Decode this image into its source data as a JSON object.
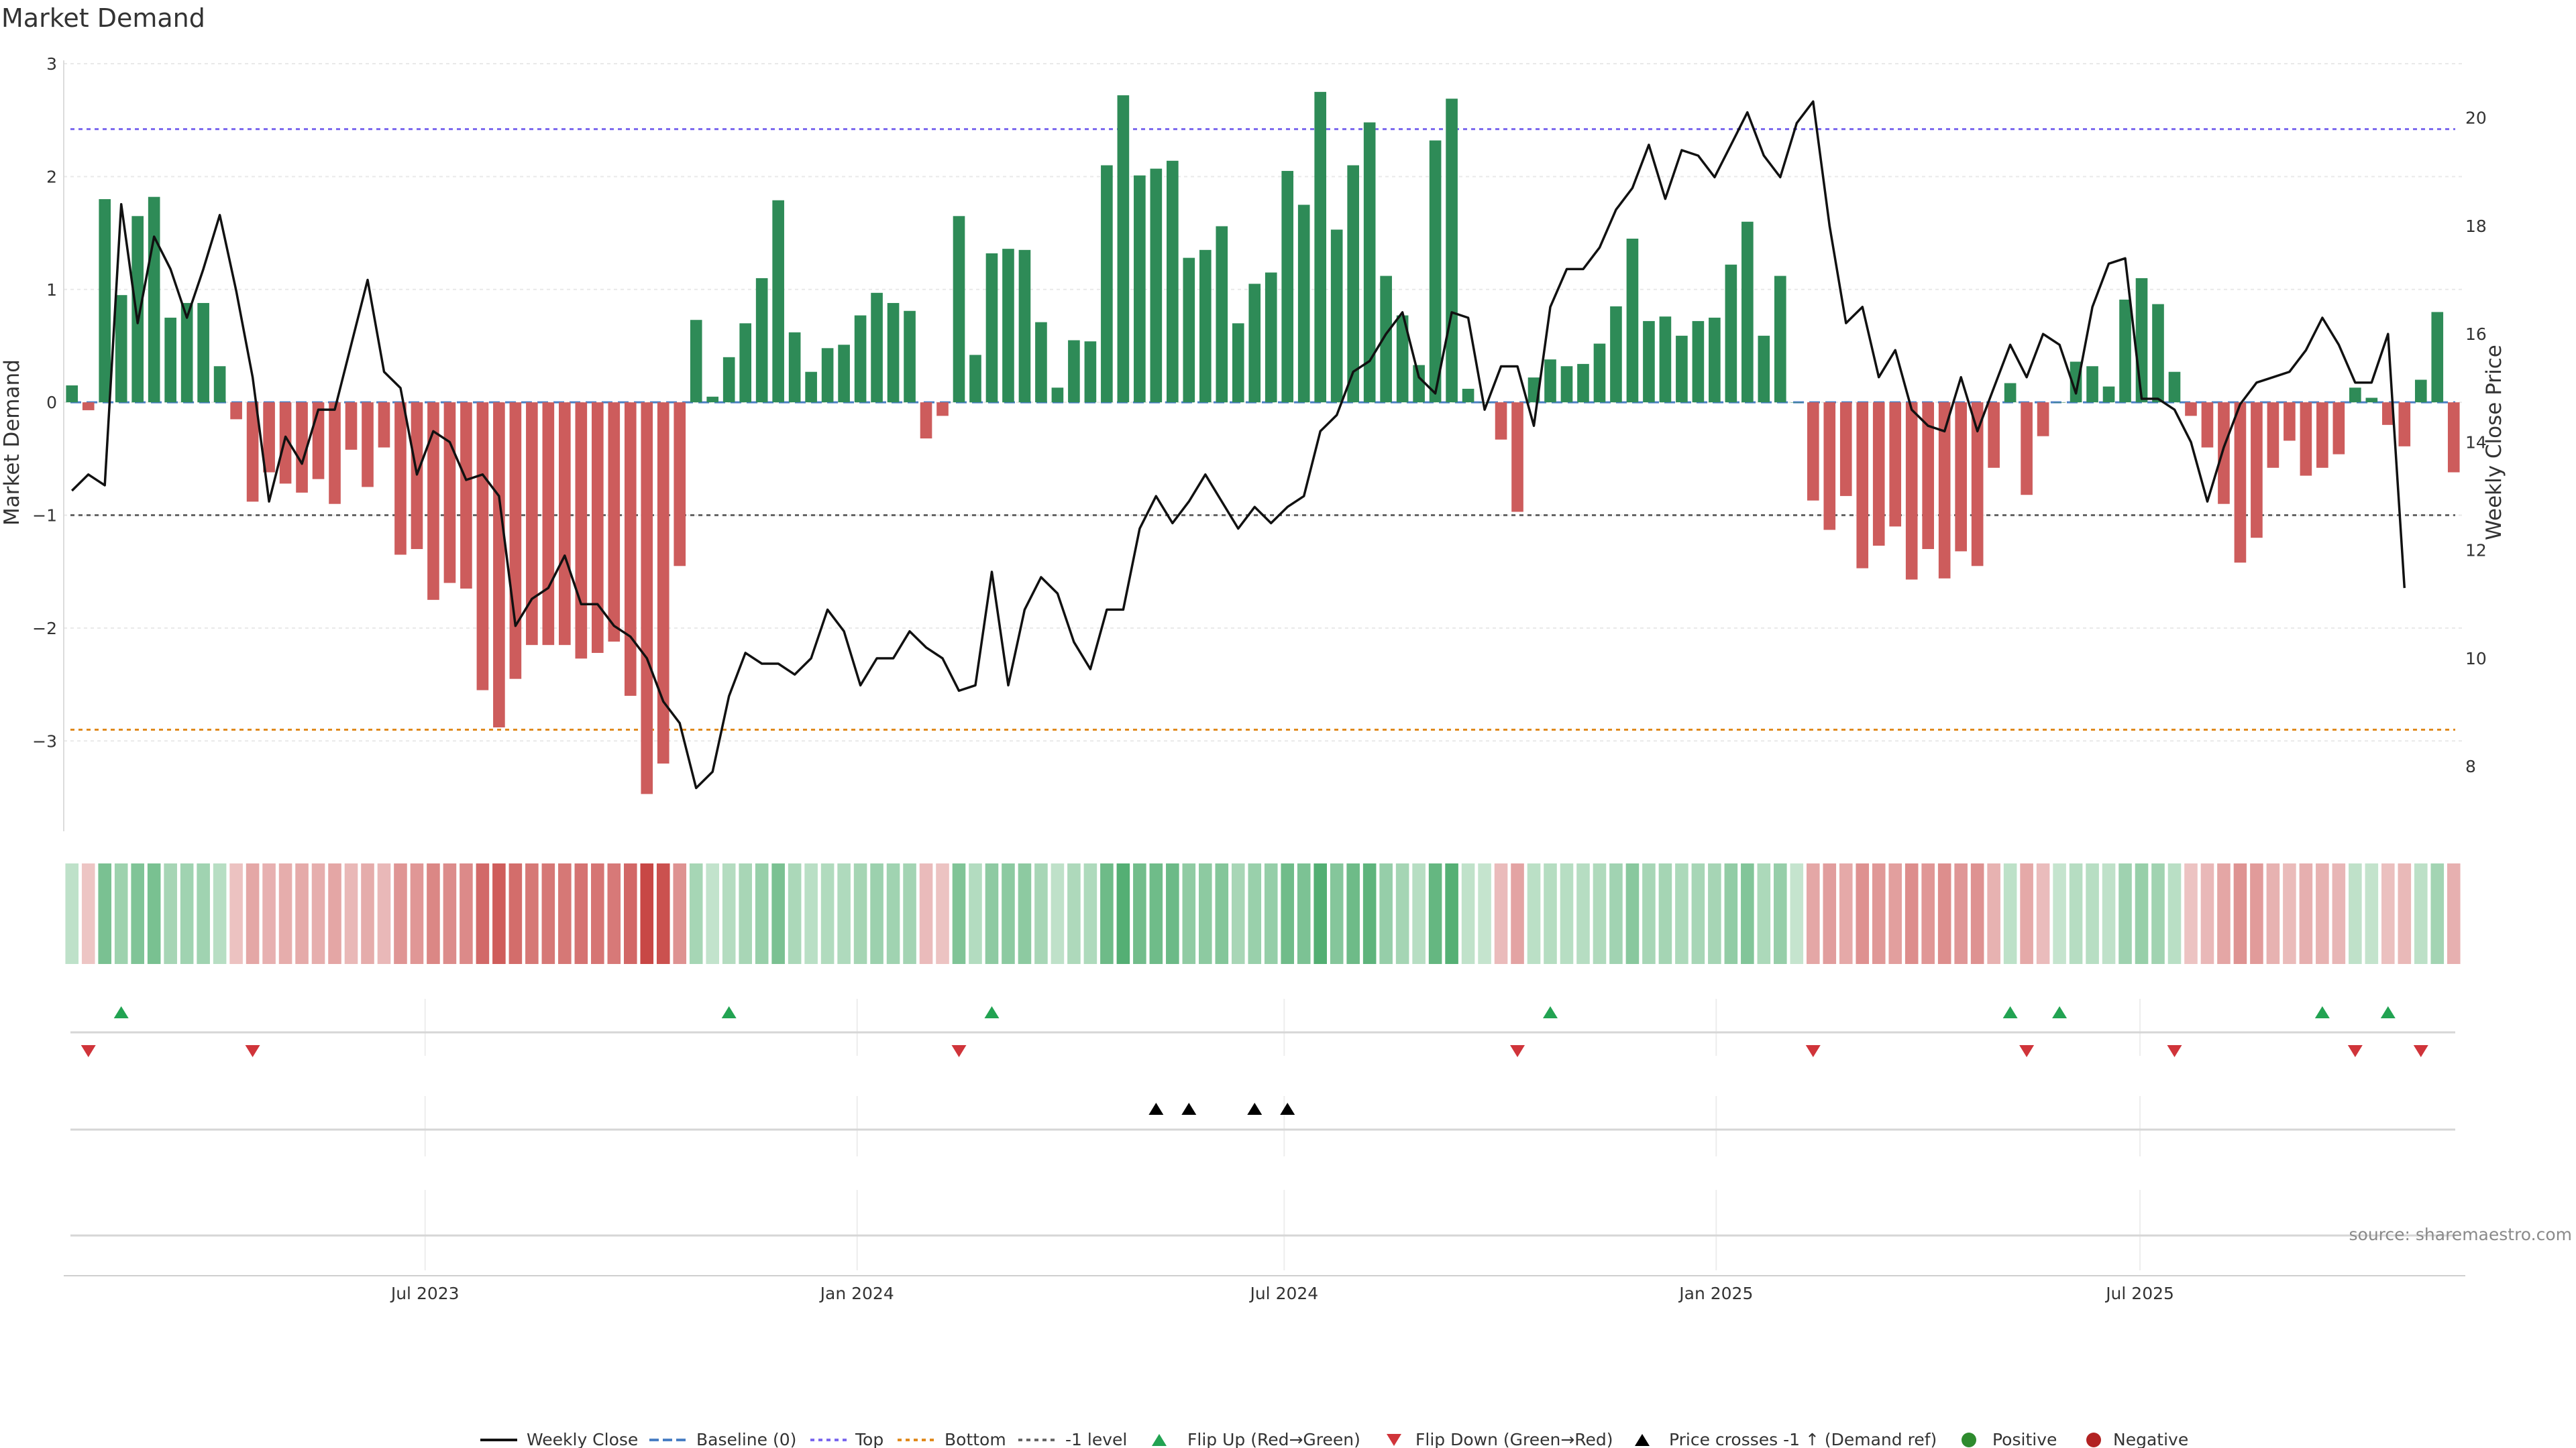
{
  "chart_data": {
    "type": "bar+line",
    "title": "Market Demand",
    "ylabel_left": "Market Demand",
    "ylabel_right": "Weekly Close Price",
    "ylim_left": [
      -3.8,
      3.0
    ],
    "ylim_right": [
      6.8,
      21.0
    ],
    "yticks_left": [
      "3",
      "2",
      "1",
      "0",
      "−1",
      "−2",
      "−3"
    ],
    "yticks_left_values": [
      3,
      2,
      1,
      0,
      -1,
      -2,
      -3
    ],
    "yticks_right": [
      "20",
      "18",
      "16",
      "14",
      "12",
      "10",
      "8"
    ],
    "yticks_right_values": [
      20,
      18,
      16,
      14,
      12,
      10,
      8
    ],
    "x_range_weeks": [
      0,
      144
    ],
    "xticks": [
      "Jul 2023",
      "Jan 2024",
      "Jul 2024",
      "Jan 2025",
      "Jul 2025"
    ],
    "xticks_week": [
      21.5,
      47.8,
      73.8,
      100.1,
      125.9
    ],
    "reference_lines": {
      "top": 2.42,
      "bottom": -2.9,
      "minus_one_level": -1.0,
      "baseline": 0
    },
    "colors": {
      "positive": "#2e8b57",
      "negative": "#cd5c5c",
      "price_line": "#111111",
      "top_line": "#7b68ee",
      "bottom_line": "#e08a1e",
      "minus_one_line": "#666666",
      "baseline": "#4a7fc4",
      "flip_up": "#22a352",
      "flip_down": "#d0343a",
      "cross_marker": "#000000",
      "positive_dot": "#2e8b2e",
      "negative_dot": "#b22222"
    },
    "demand": [
      0.15,
      -0.07,
      1.8,
      0.95,
      1.65,
      1.82,
      0.75,
      0.88,
      0.88,
      0.32,
      -0.15,
      -0.88,
      -0.62,
      -0.72,
      -0.8,
      -0.68,
      -0.9,
      -0.42,
      -0.75,
      -0.4,
      -1.35,
      -1.3,
      -1.75,
      -1.6,
      -1.65,
      -2.55,
      -2.88,
      -2.45,
      -2.15,
      -2.15,
      -2.15,
      -2.27,
      -2.22,
      -2.12,
      -2.6,
      -3.47,
      -3.2,
      -1.45,
      0.73,
      0.05,
      0.4,
      0.7,
      1.1,
      1.79,
      0.62,
      0.27,
      0.48,
      0.51,
      0.77,
      0.97,
      0.88,
      0.81,
      -0.32,
      -0.12,
      1.65,
      0.42,
      1.32,
      1.36,
      1.35,
      0.71,
      0.13,
      0.55,
      0.54,
      2.1,
      2.72,
      2.01,
      2.07,
      2.14,
      1.28,
      1.35,
      1.56,
      0.7,
      1.05,
      1.15,
      2.05,
      1.75,
      2.75,
      1.53,
      2.1,
      2.48,
      1.12,
      0.77,
      0.33,
      2.32,
      2.69,
      0.12,
      0.0,
      -0.33,
      -0.97,
      0.22,
      0.38,
      0.32,
      0.34,
      0.52,
      0.85,
      1.45,
      0.72,
      0.76,
      0.59,
      0.72,
      0.75,
      1.22,
      1.6,
      0.59,
      1.12,
      0.0,
      -0.87,
      -1.13,
      -0.83,
      -1.47,
      -1.27,
      -1.1,
      -1.57,
      -1.3,
      -1.56,
      -1.32,
      -1.45,
      -0.58,
      0.17,
      -0.82,
      -0.3,
      0.0,
      0.36,
      0.32,
      0.14,
      0.91,
      1.1,
      0.87,
      0.27,
      -0.12,
      -0.4,
      -0.9,
      -1.42,
      -1.2,
      -0.58,
      -0.34,
      -0.65,
      -0.58,
      -0.46,
      0.13,
      0.04,
      -0.2,
      -0.39,
      0.2,
      0.8,
      -0.62
    ],
    "weekly_close": [
      13.1,
      13.4,
      13.2,
      18.4,
      16.2,
      17.8,
      17.2,
      16.3,
      17.2,
      18.2,
      16.8,
      15.2,
      12.9,
      14.1,
      13.6,
      14.6,
      14.6,
      15.8,
      17.0,
      15.3,
      15.0,
      13.4,
      14.2,
      14.0,
      13.3,
      13.4,
      13.0,
      10.6,
      11.1,
      11.3,
      11.9,
      11.0,
      11.0,
      10.6,
      10.4,
      10.0,
      9.2,
      8.8,
      7.6,
      7.9,
      9.3,
      10.1,
      9.9,
      9.9,
      9.7,
      10.0,
      10.9,
      10.5,
      9.5,
      10.0,
      10.0,
      10.5,
      10.2,
      10.0,
      9.4,
      9.5,
      11.6,
      9.5,
      10.9,
      11.5,
      11.2,
      10.3,
      9.8,
      10.9,
      10.9,
      12.4,
      13.0,
      12.5,
      12.9,
      13.4,
      12.9,
      12.4,
      12.8,
      12.5,
      12.8,
      13.0,
      14.2,
      14.5,
      15.3,
      15.5,
      16.0,
      16.4,
      15.2,
      14.9,
      16.4,
      16.3,
      14.6,
      15.4,
      15.4,
      14.3,
      16.5,
      17.2,
      17.2,
      17.6,
      18.3,
      18.7,
      19.5,
      18.5,
      19.4,
      19.3,
      18.9,
      19.5,
      20.1,
      19.3,
      18.9,
      19.9,
      20.3,
      18.0,
      16.2,
      16.5,
      15.2,
      15.7,
      14.6,
      14.3,
      14.2,
      15.2,
      14.2,
      15.0,
      15.8,
      15.2,
      16.0,
      15.8,
      14.9,
      16.5,
      17.3,
      17.4,
      14.8,
      14.8,
      14.6,
      14.0,
      12.9,
      13.9,
      14.7,
      15.1,
      15.2,
      15.3,
      15.7,
      16.3,
      15.8,
      15.1,
      15.1,
      16.0,
      11.3
    ],
    "flip_up_weeks": [
      3,
      40,
      56,
      90,
      118,
      121,
      137,
      141
    ],
    "flip_down_weeks": [
      1,
      11,
      54,
      88,
      106,
      119,
      128,
      139,
      143
    ],
    "price_cross_weeks": [
      66,
      68,
      72,
      74
    ],
    "legend": [
      "Weekly Close",
      "Baseline (0)",
      "Top",
      "Bottom",
      "-1 level",
      "Flip Up (Red→Green)",
      "Flip Down (Green→Red)",
      "Price crosses -1 ↑ (Demand ref)",
      "Positive",
      "Negative"
    ],
    "source": "source: sharemaestro.com"
  }
}
